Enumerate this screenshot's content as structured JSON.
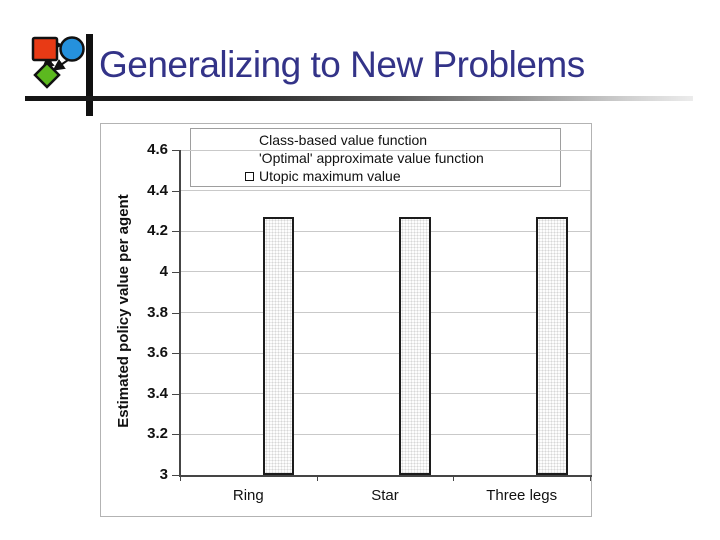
{
  "slide": {
    "title": "Generalizing to New Problems",
    "title_color": "#333388"
  },
  "logo": {
    "description": "graph of three connected nodes",
    "colors": {
      "square": "#e83a15",
      "circle": "#2591dd",
      "diamond": "#5cb91f"
    }
  },
  "chart_data": {
    "type": "bar",
    "categories": [
      "Ring",
      "Star",
      "Three legs"
    ],
    "series": [
      {
        "name": "Class-based value function",
        "legend_marker": "none",
        "bars_visible": false
      },
      {
        "name": "'Optimal' approximate value function",
        "legend_marker": "none",
        "bars_visible": false
      },
      {
        "name": "Utopic maximum value",
        "legend_marker": "open-square",
        "bars_visible": true,
        "values": [
          4.27,
          4.27,
          4.27
        ]
      }
    ],
    "ylabel": "Estimated policy value per agent",
    "ylim": [
      3.0,
      4.6
    ],
    "yticks": [
      {
        "value": 3.0,
        "label": "3"
      },
      {
        "value": 3.2,
        "label": "3.2"
      },
      {
        "value": 3.4,
        "label": "3.4"
      },
      {
        "value": 3.6,
        "label": "3.6"
      },
      {
        "value": 3.8,
        "label": "3.8"
      },
      {
        "value": 4.0,
        "label": "4"
      },
      {
        "value": 4.2,
        "label": "4.2"
      },
      {
        "value": 4.4,
        "label": "4.4"
      },
      {
        "value": 4.6,
        "label": "4.6"
      }
    ],
    "grid": true,
    "legend_position": "top-inside"
  }
}
